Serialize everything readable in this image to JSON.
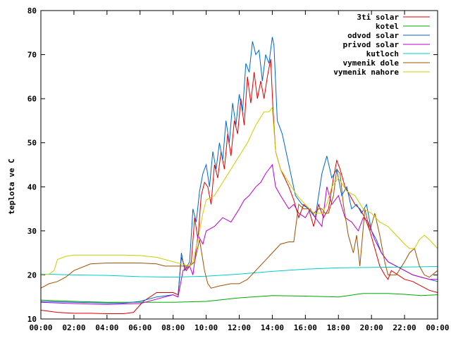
{
  "chart_data": {
    "type": "line",
    "title": "",
    "xlabel": "",
    "ylabel": "teplota ve C",
    "ylim": [
      10,
      80
    ],
    "xlim": [
      0,
      24
    ],
    "grid": false,
    "legend_position": "top-right",
    "yticks": [
      "10",
      "20",
      "30",
      "40",
      "50",
      "60",
      "70",
      "80"
    ],
    "xticks": [
      "00:00",
      "02:00",
      "04:00",
      "06:00",
      "08:00",
      "10:00",
      "12:00",
      "14:00",
      "16:00",
      "18:00",
      "20:00",
      "22:00",
      "00:00"
    ],
    "series": [
      {
        "name": "3ti solar",
        "color": "#dd0000",
        "x": [
          0,
          1,
          2,
          3,
          4,
          5,
          5.6,
          6.2,
          7,
          7.5,
          8,
          8.3,
          8.5,
          8.8,
          9,
          9.1,
          9.3,
          9.5,
          9.7,
          9.9,
          10.1,
          10.3,
          10.5,
          10.7,
          10.9,
          11.1,
          11.3,
          11.5,
          11.7,
          11.9,
          12.1,
          12.3,
          12.5,
          12.7,
          12.9,
          13.1,
          13.3,
          13.5,
          13.7,
          13.9,
          14.05,
          14.2,
          14.5,
          15,
          15.3,
          15.6,
          15.9,
          16.2,
          16.5,
          16.8,
          17.1,
          17.4,
          17.7,
          17.9,
          18.1,
          18.4,
          18.7,
          19,
          19.3,
          19.6,
          19.9,
          20.2,
          20.5,
          20.8,
          21,
          21.2,
          21.6,
          22,
          22.5,
          23,
          23.5,
          24
        ],
        "y": [
          12,
          11.5,
          11.3,
          11.3,
          11.2,
          11.2,
          11.5,
          14,
          16,
          16,
          16,
          15.5,
          24,
          21,
          22,
          23,
          33,
          28,
          38,
          41,
          40,
          36,
          45,
          42,
          48,
          44,
          52,
          47,
          55,
          52,
          60,
          54,
          65,
          59,
          66,
          60,
          64,
          60,
          65,
          69,
          57,
          48,
          44,
          40,
          37,
          33,
          36,
          35,
          31,
          36,
          33,
          35,
          42,
          46,
          44,
          40,
          38,
          36,
          35,
          33,
          30,
          26,
          22,
          20,
          19,
          21,
          20,
          19,
          18.5,
          17.5,
          16.5,
          16
        ]
      },
      {
        "name": "kotel",
        "color": "#00aa00",
        "x": [
          0,
          2,
          4,
          6,
          8,
          10,
          12,
          14,
          16,
          18,
          19.5,
          21,
          22,
          23,
          24
        ],
        "y": [
          14.3,
          14,
          13.8,
          13.8,
          13.8,
          14,
          14.8,
          15.3,
          15.2,
          15,
          15.8,
          15.8,
          15.6,
          15.3,
          15.5
        ],
        "points": 0
      },
      {
        "name": "odvod solar",
        "color": "#0066cc",
        "x": [
          0,
          1,
          2,
          3,
          4,
          5,
          6,
          7,
          8,
          8.3,
          8.5,
          8.7,
          9,
          9.2,
          9.4,
          9.6,
          9.8,
          10,
          10.2,
          10.4,
          10.6,
          10.8,
          11,
          11.2,
          11.4,
          11.6,
          11.8,
          12,
          12.2,
          12.4,
          12.6,
          12.8,
          13,
          13.2,
          13.4,
          13.6,
          13.8,
          14,
          14.1,
          14.3,
          14.6,
          15,
          15.4,
          15.8,
          16.2,
          16.6,
          17,
          17.3,
          17.6,
          17.9,
          18.2,
          18.5,
          18.8,
          19.1,
          19.4,
          19.7,
          20,
          20.3,
          20.6,
          21,
          21.5,
          22,
          22.5,
          23,
          23.5,
          24
        ],
        "y": [
          14,
          13.9,
          13.8,
          13.7,
          13.6,
          13.6,
          14,
          15,
          15.5,
          15,
          25,
          21,
          23,
          35,
          32,
          39,
          43,
          45,
          40,
          48,
          44,
          50,
          46,
          55,
          50,
          59,
          54,
          61,
          57,
          68,
          66,
          73,
          70,
          71,
          64,
          70,
          68,
          74,
          72,
          55,
          52,
          45,
          38,
          36,
          35,
          33,
          43,
          47,
          42,
          44,
          38,
          40,
          35,
          36,
          34,
          36,
          30,
          28,
          25,
          23,
          22,
          21,
          20,
          19.5,
          19,
          18.5
        ]
      },
      {
        "name": "privod solar",
        "color": "#bb00cc",
        "x": [
          0,
          2,
          4,
          6,
          7,
          8,
          8.3,
          8.6,
          9,
          9.2,
          9.5,
          9.8,
          10,
          10.5,
          11,
          11.5,
          12,
          12.3,
          12.6,
          13,
          13.3,
          13.6,
          14,
          14.2,
          14.5,
          15,
          15.3,
          15.6,
          16,
          16.3,
          16.6,
          17,
          17.3,
          17.6,
          18,
          18.4,
          18.8,
          19.2,
          19.5,
          19.8,
          20.2,
          20.6,
          21,
          21.5,
          22,
          22.5,
          23,
          23.5,
          24
        ],
        "y": [
          13.8,
          13.5,
          13.3,
          13.5,
          14.5,
          15.5,
          15,
          21,
          22,
          20,
          29,
          27,
          30,
          31,
          33,
          32,
          35,
          37,
          38,
          40,
          41,
          43,
          45,
          40,
          38,
          35,
          36,
          34,
          33,
          35,
          33,
          31,
          40,
          36,
          38,
          33,
          32,
          30,
          33,
          32,
          28,
          25,
          23,
          22,
          21,
          20,
          19.5,
          19,
          19
        ]
      },
      {
        "name": "kutloch",
        "color": "#00cccc",
        "x": [
          0,
          2,
          4,
          6,
          8,
          10,
          12,
          14,
          16,
          18,
          20,
          22,
          24
        ],
        "y": [
          20.2,
          20,
          19.9,
          19.6,
          19.5,
          19.7,
          20.2,
          20.8,
          21.3,
          21.6,
          21.7,
          21.8,
          21.9
        ]
      },
      {
        "name": "vymenik dole",
        "color": "#a05000",
        "x": [
          0,
          0.5,
          1,
          1.5,
          2,
          3,
          4,
          5,
          6,
          7,
          7.5,
          8,
          8.4,
          8.7,
          9,
          9.3,
          9.6,
          9.9,
          10.1,
          10.3,
          10.8,
          11.5,
          12,
          12.5,
          13,
          13.5,
          14,
          14.5,
          15,
          15.3,
          15.6,
          15.9,
          16.2,
          16.5,
          16.8,
          17,
          17.2,
          17.4,
          17.7,
          17.9,
          18.1,
          18.3,
          18.6,
          18.9,
          19.1,
          19.3,
          19.6,
          19.9,
          20.2,
          20.5,
          20.8,
          21,
          21.5,
          22,
          22.3,
          22.6,
          22.9,
          23.2,
          23.5,
          24
        ],
        "y": [
          17,
          18,
          18.5,
          19.5,
          21,
          22.5,
          22.7,
          22.7,
          22.7,
          22.5,
          22,
          22,
          22,
          22,
          22,
          23,
          28,
          21,
          18,
          17,
          17.5,
          18,
          18,
          19,
          21,
          23,
          25,
          27,
          27.5,
          27.5,
          36,
          35,
          35,
          34,
          35,
          35,
          34,
          34,
          38,
          44,
          43,
          36,
          29,
          25,
          29,
          22,
          35,
          30,
          34,
          29,
          23,
          20,
          20,
          23,
          25,
          26,
          22,
          20,
          19.5,
          21
        ]
      },
      {
        "name": "vymenik nahore",
        "color": "#cccc00",
        "x": [
          0,
          0.5,
          0.8,
          1,
          1.5,
          2,
          3,
          4,
          5,
          6,
          7,
          7.5,
          8,
          8.5,
          9,
          9.2,
          9.5,
          9.8,
          10,
          10.5,
          11,
          11.5,
          12,
          12.5,
          13,
          13.5,
          13.8,
          14,
          14.2,
          14.5,
          15,
          15.5,
          16,
          16.5,
          17,
          17.3,
          17.6,
          18,
          18.5,
          19,
          19.5,
          20,
          20.5,
          21,
          21.5,
          22,
          22.3,
          22.6,
          22.9,
          23.2,
          23.5,
          24
        ],
        "y": [
          20,
          20.2,
          21,
          23.5,
          24.2,
          24.5,
          24.5,
          24.5,
          24.5,
          24.4,
          24,
          23.5,
          23,
          22.5,
          22,
          23,
          28,
          34,
          37,
          38,
          41,
          44,
          47,
          50,
          54,
          57,
          57,
          58,
          48,
          44,
          41,
          38,
          36,
          34,
          34,
          36,
          40,
          42,
          39,
          38,
          35,
          34,
          32,
          31,
          29,
          27,
          26,
          26,
          28,
          29,
          28,
          26
        ]
      }
    ]
  }
}
